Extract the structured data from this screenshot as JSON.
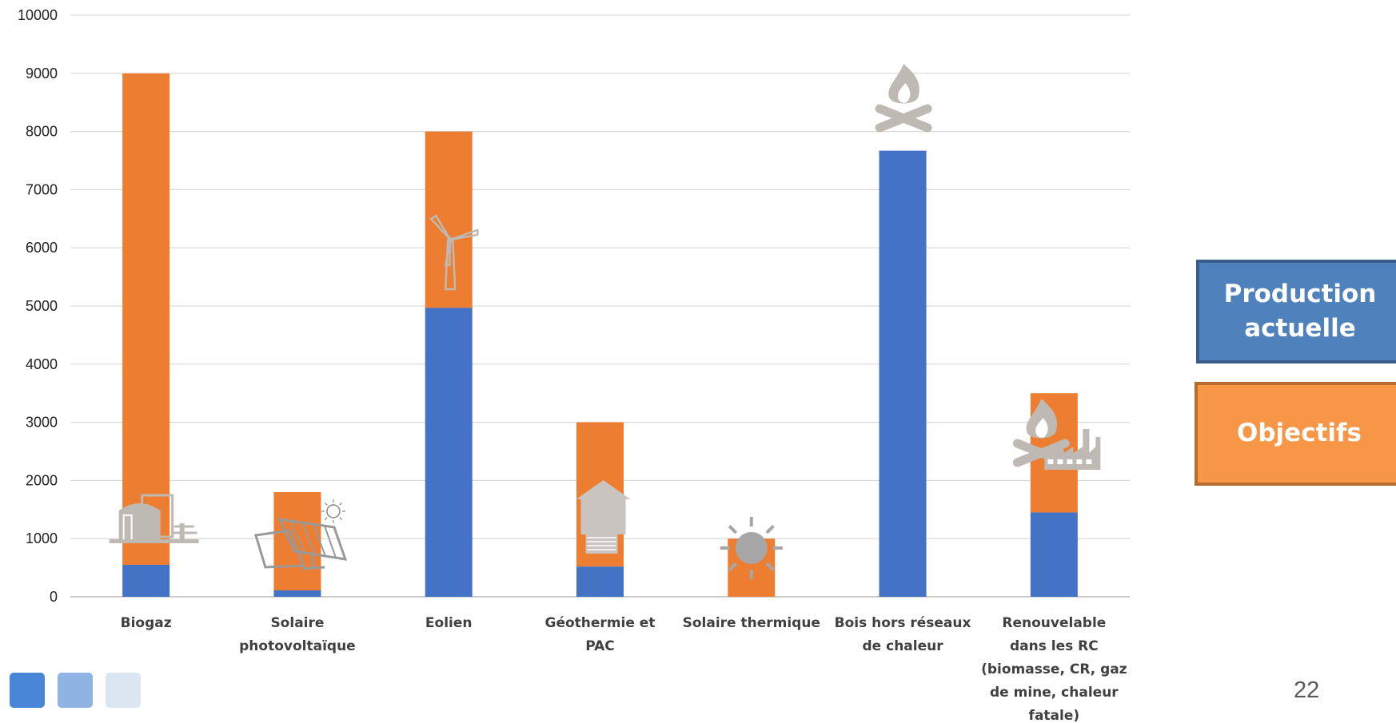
{
  "chart_data": {
    "type": "bar",
    "stacked": true,
    "categories": [
      [
        "Biogaz"
      ],
      [
        "Solaire",
        "photovoltaïque"
      ],
      [
        "Eolien"
      ],
      [
        "Géothermie et",
        "PAC"
      ],
      [
        "Solaire thermique"
      ],
      [
        "Bois hors réseaux",
        "de chaleur"
      ],
      [
        "Renouvelable",
        "dans les RC",
        "(biomasse, CR, gaz",
        "de mine, chaleur",
        "fatale)"
      ]
    ],
    "series": [
      {
        "name": "Production actuelle",
        "color": "#4472c4",
        "values": [
          550,
          110,
          4970,
          520,
          0,
          7670,
          1450
        ]
      },
      {
        "name": "Objectifs",
        "color": "#ed7d31",
        "values": [
          8450,
          1690,
          3030,
          2480,
          1000,
          0,
          2050
        ]
      }
    ],
    "totals": [
      9000,
      1800,
      8000,
      3000,
      1000,
      7670,
      3500
    ],
    "ylim": [
      0,
      10000
    ],
    "yticks": [
      0,
      1000,
      2000,
      3000,
      4000,
      5000,
      6000,
      7000,
      8000,
      9000,
      10000
    ],
    "grid": true,
    "legend_position": "right",
    "icons": [
      "methanizer-icon",
      "solar-panel-icon",
      "wind-turbine-icon",
      "heat-pump-house-icon",
      "sun-icon",
      "campfire-icon",
      "campfire-factory-icon"
    ]
  },
  "legend": {
    "current_label": "Production actuelle",
    "target_label": "Objectifs"
  },
  "page_number": "22"
}
